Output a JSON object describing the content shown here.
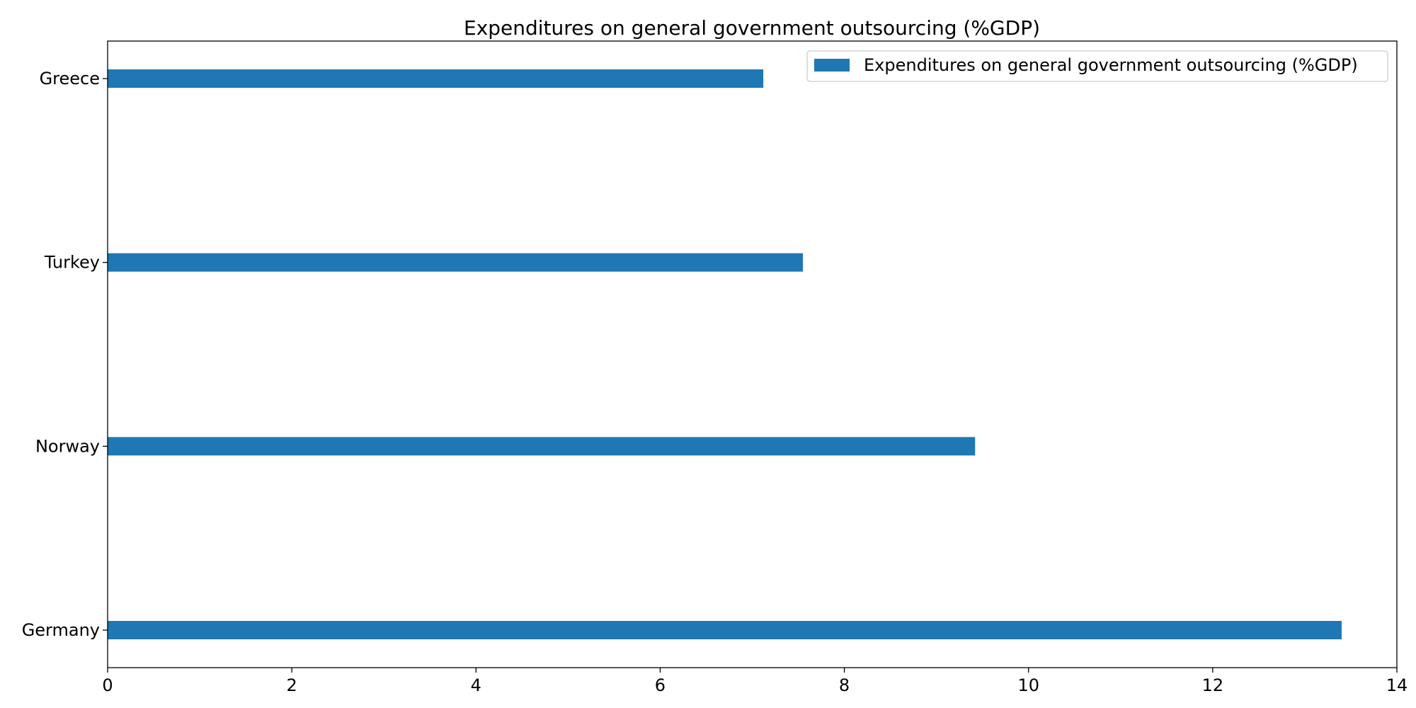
{
  "chart_data": {
    "type": "bar",
    "orientation": "horizontal",
    "title": "Expenditures on general government outsourcing (%GDP)",
    "xlabel": "",
    "ylabel": "",
    "categories": [
      "Greece",
      "Turkey",
      "Norway",
      "Germany"
    ],
    "series": [
      {
        "name": "Expenditures on general government outsourcing (%GDP)",
        "values": [
          7.12,
          7.55,
          9.42,
          13.4
        ],
        "color": "#1f77b4"
      }
    ],
    "xlim": [
      0,
      14
    ],
    "xticks": [
      "0",
      "2",
      "4",
      "6",
      "8",
      "10",
      "12",
      "14"
    ],
    "grid": false,
    "legend": "upper-right"
  }
}
